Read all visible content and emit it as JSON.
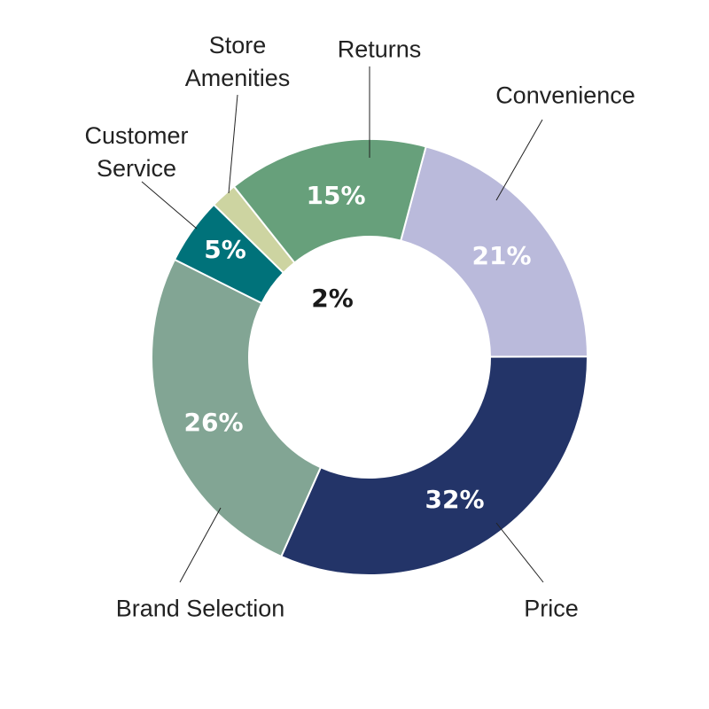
{
  "chart_data": {
    "type": "donut",
    "categories": [
      "Convenience",
      "Price",
      "Brand Selection",
      "Customer Service",
      "Store Amenities",
      "Returns"
    ],
    "values": [
      21,
      32,
      26,
      5,
      2,
      15
    ],
    "value_labels": [
      "21%",
      "32%",
      "26%",
      "5%",
      "2%",
      "15%"
    ],
    "colors": [
      "#babadb",
      "#233468",
      "#82a594",
      "#00727a",
      "#cdd4a1",
      "#67a07b"
    ]
  }
}
